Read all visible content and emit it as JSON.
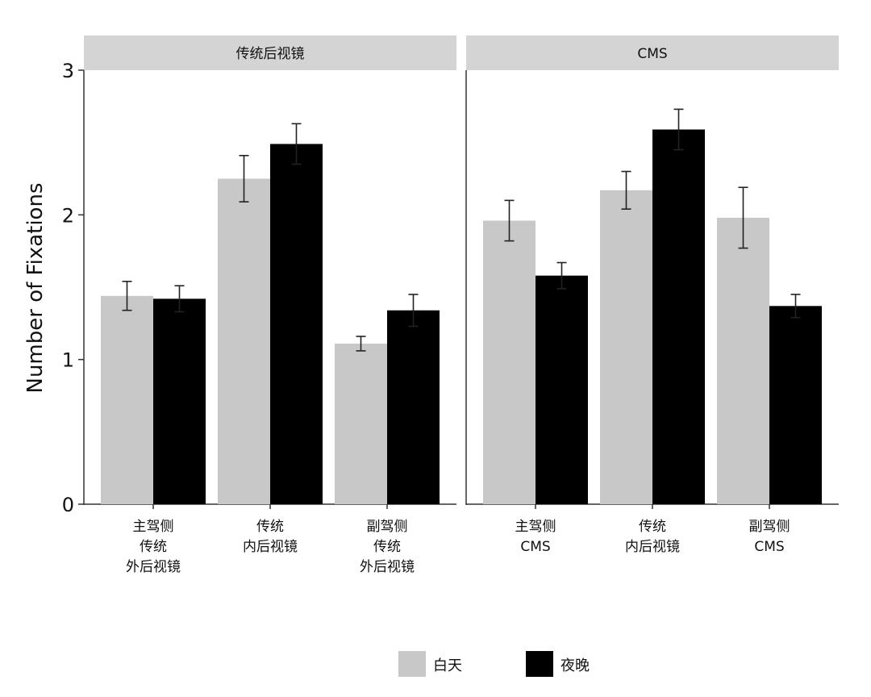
{
  "chart_data": {
    "type": "bar",
    "ylabel": "Number of Fixations",
    "ylim": [
      0,
      3
    ],
    "yticks": [
      0,
      1,
      2,
      3
    ],
    "legend": {
      "position": "bottom",
      "entries": [
        {
          "label": "白天",
          "color": "#c8c8c8"
        },
        {
          "label": "夜晚",
          "color": "#000000"
        }
      ]
    },
    "panels": [
      {
        "title": "传统后视镜",
        "categories": [
          [
            "主驾侧",
            "传统",
            "外后视镜"
          ],
          [
            "传统",
            "内后视镜"
          ],
          [
            "副驾侧",
            "传统",
            "外后视镜"
          ]
        ],
        "series": [
          {
            "name": "白天",
            "values": [
              1.44,
              2.25,
              1.11
            ],
            "errors": [
              0.1,
              0.16,
              0.05
            ]
          },
          {
            "name": "夜晚",
            "values": [
              1.42,
              2.49,
              1.34
            ],
            "errors": [
              0.09,
              0.14,
              0.11
            ]
          }
        ]
      },
      {
        "title": "CMS",
        "categories": [
          [
            "主驾侧",
            "CMS"
          ],
          [
            "传统",
            "内后视镜"
          ],
          [
            "副驾侧",
            "CMS"
          ]
        ],
        "series": [
          {
            "name": "白天",
            "values": [
              1.96,
              2.17,
              1.98
            ],
            "errors": [
              0.14,
              0.13,
              0.21
            ]
          },
          {
            "name": "夜晚",
            "values": [
              1.58,
              2.59,
              1.37
            ],
            "errors": [
              0.09,
              0.14,
              0.08
            ]
          }
        ]
      }
    ]
  }
}
